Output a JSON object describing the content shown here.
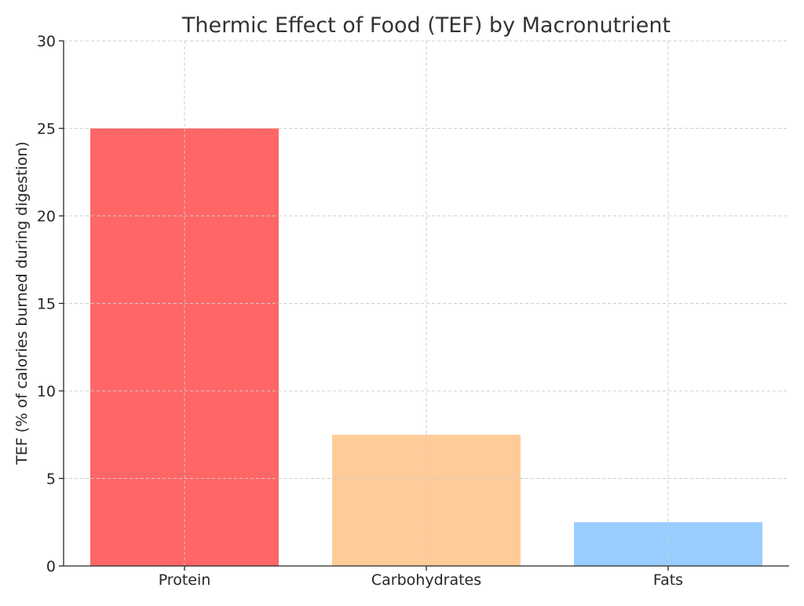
{
  "chart_data": {
    "type": "bar",
    "title": "Thermic Effect of Food (TEF) by Macronutrient",
    "xlabel": "",
    "ylabel": "TEF (% of calories burned during digestion)",
    "categories": [
      "Protein",
      "Carbohydrates",
      "Fats"
    ],
    "values": [
      25,
      7.5,
      2.5
    ],
    "colors": [
      "#ff6666",
      "#ffcc99",
      "#99ccff"
    ],
    "ylim": [
      0,
      30
    ],
    "yticks": [
      0,
      5,
      10,
      15,
      20,
      25,
      30
    ],
    "grid": true,
    "legend": "none"
  }
}
